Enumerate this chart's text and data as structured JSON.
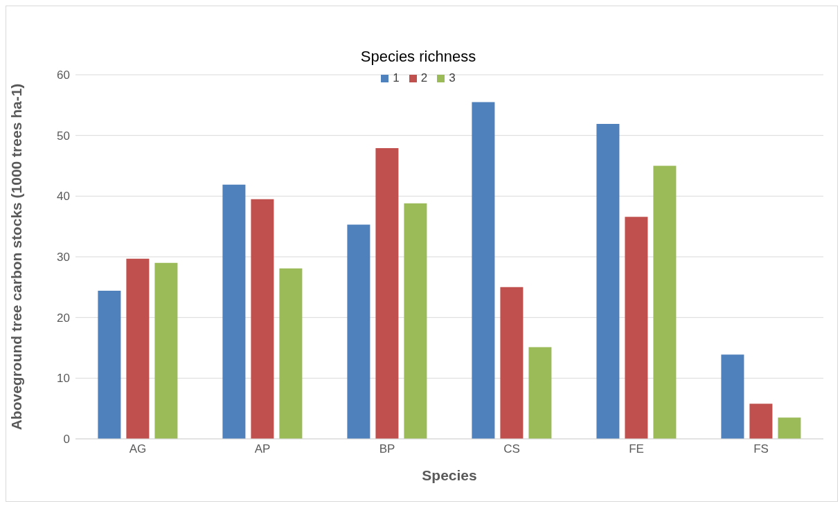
{
  "chart_data": {
    "type": "bar",
    "xlabel": "Species",
    "ylabel": "Aboveground tree carbon stocks (1000 trees ha-1)",
    "legend_title": "Species richness",
    "categories": [
      "AG",
      "AP",
      "BP",
      "CS",
      "FE",
      "FS"
    ],
    "series": [
      {
        "name": "1",
        "color": "#4f81bd",
        "values": [
          24.4,
          41.9,
          35.3,
          55.5,
          51.9,
          13.9
        ]
      },
      {
        "name": "2",
        "color": "#c0504d",
        "values": [
          29.7,
          39.5,
          47.9,
          25.0,
          36.6,
          5.8
        ]
      },
      {
        "name": "3",
        "color": "#9bbb59",
        "values": [
          29.0,
          28.1,
          38.8,
          15.1,
          45.0,
          3.5
        ]
      }
    ],
    "ylim": [
      0,
      60
    ],
    "yticks": [
      0,
      10,
      20,
      30,
      40,
      50,
      60
    ],
    "grid": "y",
    "legend": "top right"
  }
}
